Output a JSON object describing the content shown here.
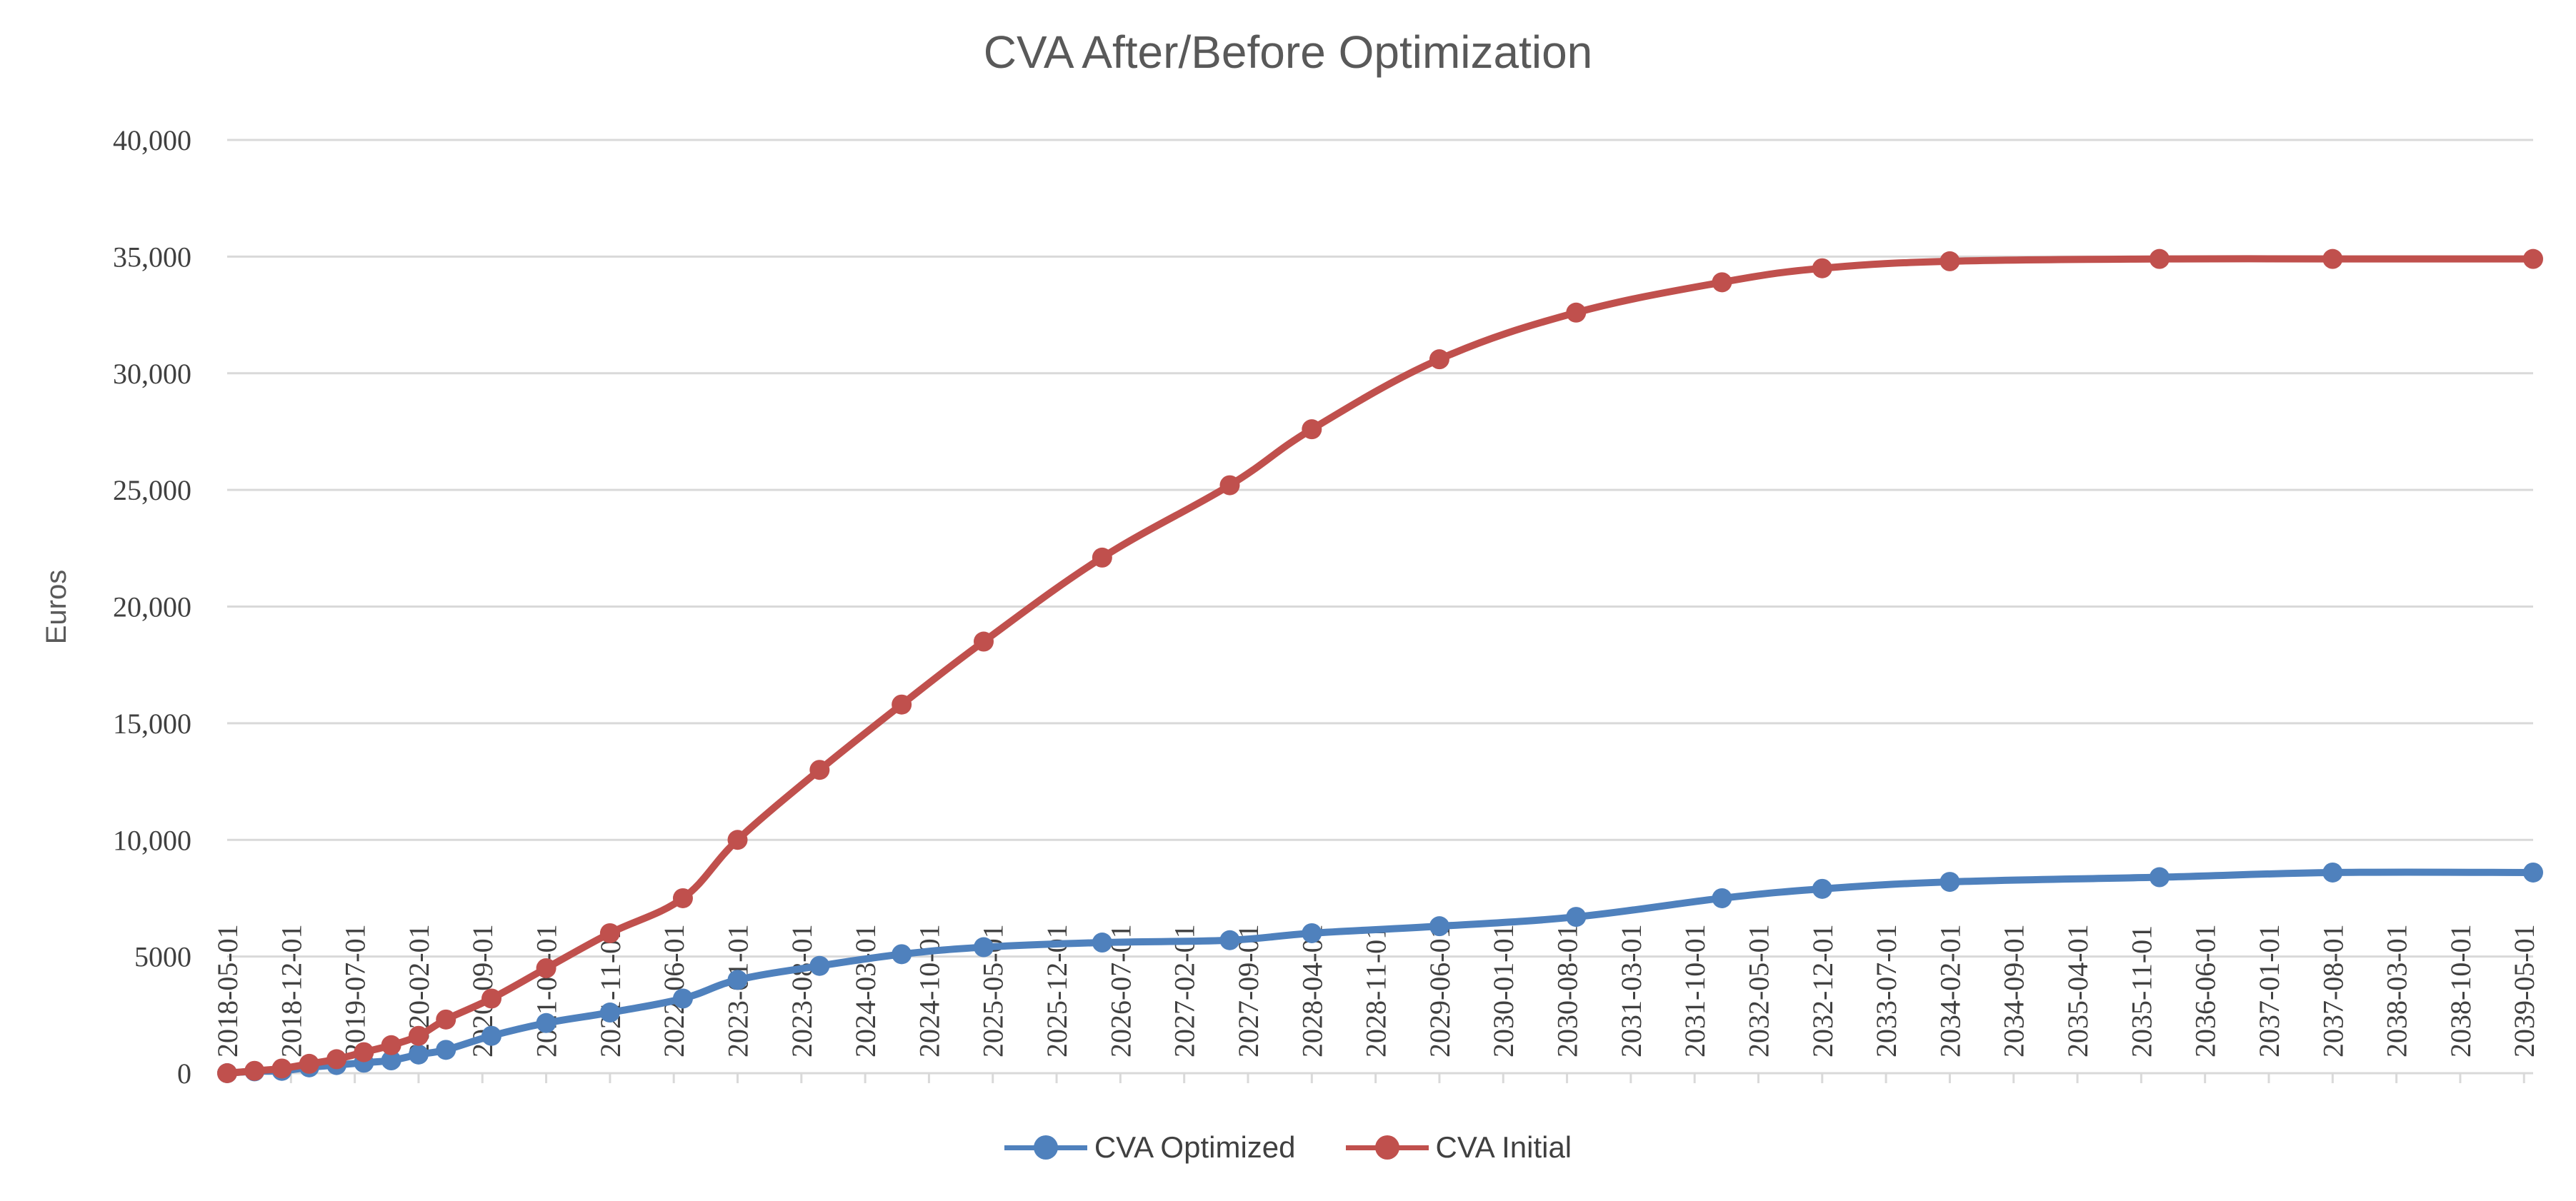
{
  "chart_data": {
    "type": "line",
    "title": "CVA After/Before Optimization",
    "xlabel": "",
    "ylabel": "Euros",
    "ylim": [
      0,
      40000
    ],
    "y_ticks": [
      {
        "value": 0,
        "label": "0"
      },
      {
        "value": 5000,
        "label": "5000"
      },
      {
        "value": 10000,
        "label": "10,000"
      },
      {
        "value": 15000,
        "label": "15,000"
      },
      {
        "value": 20000,
        "label": "20,000"
      },
      {
        "value": 25000,
        "label": "25,000"
      },
      {
        "value": 30000,
        "label": "30,000"
      },
      {
        "value": 35000,
        "label": "35,000"
      },
      {
        "value": 40000,
        "label": "40,000"
      }
    ],
    "x_range_months": [
      0,
      253
    ],
    "x_tick_labels": [
      "2018-05-01",
      "2018-12-01",
      "2019-07-01",
      "2020-02-01",
      "2020-09-01",
      "2021-04-01",
      "2021-11-01",
      "2022-06-01",
      "2023-01-01",
      "2023-08-01",
      "2024-03-01",
      "2024-10-01",
      "2025-05-01",
      "2025-12-01",
      "2026-07-01",
      "2027-02-01",
      "2027-09-01",
      "2028-04-01",
      "2028-11-01",
      "2029-06-01",
      "2030-01-01",
      "2030-08-01",
      "2031-03-01",
      "2031-10-01",
      "2032-05-01",
      "2032-12-01",
      "2033-07-01",
      "2034-02-01",
      "2034-09-01",
      "2035-04-01",
      "2035-11-01",
      "2036-06-01",
      "2037-01-01",
      "2037-08-01",
      "2038-03-01",
      "2038-10-01",
      "2039-05-01"
    ],
    "grid": true,
    "legend_position": "bottom",
    "series": [
      {
        "name": "CVA Optimized",
        "color": "#4f81bd",
        "x": [
          0,
          3,
          6,
          9,
          12,
          15,
          18,
          21,
          24,
          29,
          35,
          42,
          50,
          56,
          65,
          74,
          83,
          96,
          110,
          119,
          133,
          148,
          164,
          175,
          189,
          212,
          231,
          253
        ],
        "values": [
          0,
          80,
          100,
          250,
          350,
          450,
          550,
          800,
          1000,
          1600,
          2150,
          2600,
          3200,
          4000,
          4600,
          5100,
          5400,
          5600,
          5700,
          6000,
          6300,
          6700,
          7500,
          7900,
          8200,
          8400,
          8600,
          8600
        ]
      },
      {
        "name": "CVA Initial",
        "color": "#c0504d",
        "x": [
          0,
          3,
          6,
          9,
          12,
          15,
          18,
          21,
          24,
          29,
          35,
          42,
          50,
          56,
          65,
          74,
          83,
          96,
          110,
          119,
          133,
          148,
          164,
          175,
          189,
          212,
          231,
          253
        ],
        "values": [
          0,
          100,
          200,
          400,
          600,
          900,
          1200,
          1600,
          2300,
          3200,
          4500,
          6000,
          7500,
          10000,
          13000,
          15800,
          18500,
          22100,
          25200,
          27600,
          30600,
          32600,
          33900,
          34500,
          34800,
          34900,
          34900,
          34900
        ]
      }
    ]
  }
}
